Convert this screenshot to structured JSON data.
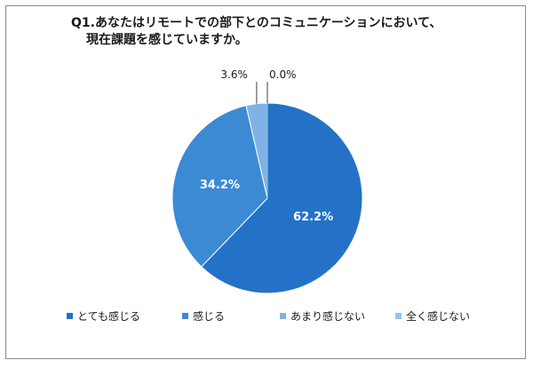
{
  "chart_data": {
    "type": "pie",
    "title_line1": "Q1.あなたはリモートでの部下とのコミュニケーションにおいて、",
    "title_line2": "現在課題を感じていますか。",
    "slices": [
      {
        "label": "とても感じる",
        "value": 62.2,
        "value_label": "62.2%",
        "color": "#2472c8"
      },
      {
        "label": "感じる",
        "value": 34.2,
        "value_label": "34.2%",
        "color": "#3c8ad4"
      },
      {
        "label": "あまり感じない",
        "value": 3.6,
        "value_label": "3.6%",
        "color": "#7fb3e6"
      },
      {
        "label": "全く感じない",
        "value": 0.0,
        "value_label": "0.0%",
        "color": "#9bc3ea"
      }
    ],
    "legend_position": "bottom"
  }
}
